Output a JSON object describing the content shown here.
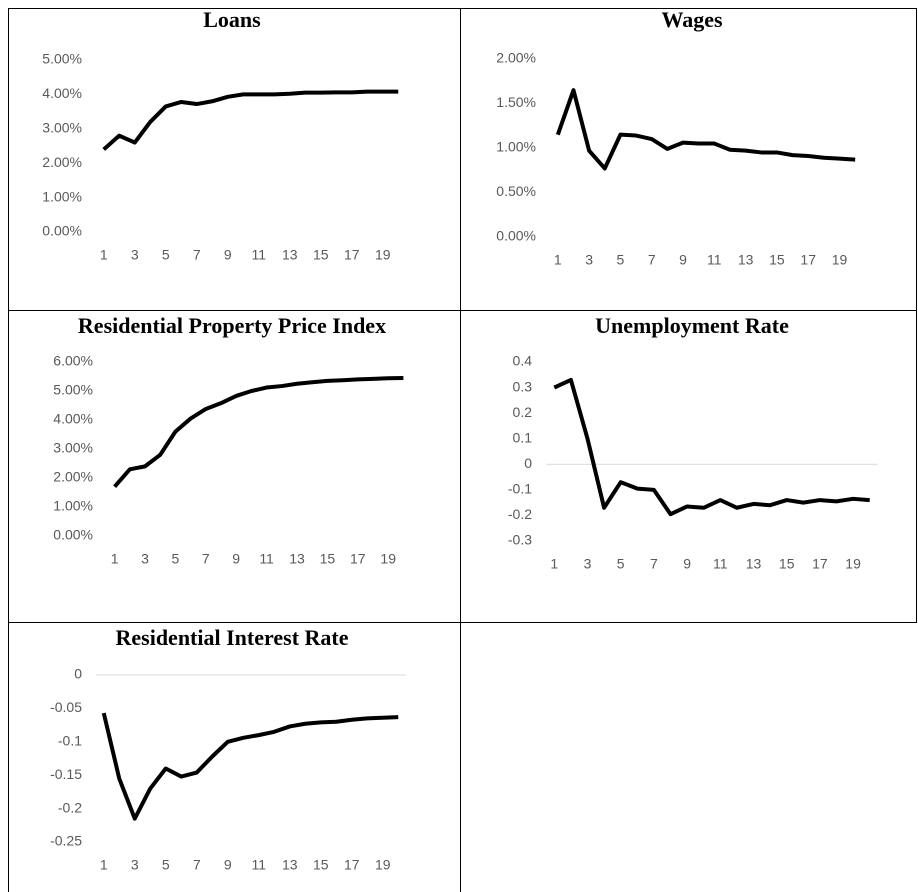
{
  "chart_data": [
    {
      "type": "line",
      "title": "Loans",
      "categories": [
        1,
        null,
        3,
        null,
        5,
        null,
        7,
        null,
        9,
        null,
        11,
        null,
        13,
        null,
        15,
        null,
        17,
        null,
        19,
        null
      ],
      "values": [
        2.4,
        2.8,
        2.6,
        3.2,
        3.65,
        3.78,
        3.72,
        3.8,
        3.93,
        4.0,
        4.0,
        4.0,
        4.02,
        4.05,
        4.05,
        4.06,
        4.06,
        4.08,
        4.08,
        4.08
      ],
      "color": "#000000",
      "ylim": [
        0,
        5
      ],
      "yticks": [
        {
          "value": 0,
          "label": "0.00%"
        },
        {
          "value": 1,
          "label": "1.00%"
        },
        {
          "value": 2,
          "label": "2.00%"
        },
        {
          "value": 3,
          "label": "3.00%"
        },
        {
          "value": 4,
          "label": "4.00%"
        },
        {
          "value": 5,
          "label": "5.00%"
        }
      ],
      "axis_line": false
    },
    {
      "type": "line",
      "title": "Wages",
      "categories": [
        1,
        null,
        3,
        null,
        5,
        null,
        7,
        null,
        9,
        null,
        11,
        null,
        13,
        null,
        15,
        null,
        17,
        null,
        19,
        null
      ],
      "values": [
        1.15,
        1.65,
        0.97,
        0.77,
        1.15,
        1.14,
        1.1,
        0.99,
        1.06,
        1.05,
        1.05,
        0.98,
        0.97,
        0.95,
        0.95,
        0.92,
        0.91,
        0.89,
        0.88,
        0.87
      ],
      "color": "#000000",
      "ylim": [
        0,
        2
      ],
      "yticks": [
        {
          "value": 0,
          "label": "0.00%"
        },
        {
          "value": 0.5,
          "label": "0.50%"
        },
        {
          "value": 1,
          "label": "1.00%"
        },
        {
          "value": 1.5,
          "label": "1.50%"
        },
        {
          "value": 2,
          "label": "2.00%"
        }
      ],
      "axis_line": false
    },
    {
      "type": "line",
      "title": "Residential Property Price   Index",
      "categories": [
        1,
        null,
        3,
        null,
        5,
        null,
        7,
        null,
        9,
        null,
        11,
        null,
        13,
        null,
        15,
        null,
        17,
        null,
        19,
        null
      ],
      "values": [
        1.7,
        2.3,
        2.4,
        2.8,
        3.6,
        4.05,
        4.38,
        4.58,
        4.83,
        5.0,
        5.12,
        5.17,
        5.25,
        5.3,
        5.35,
        5.37,
        5.4,
        5.42,
        5.44,
        5.45
      ],
      "color": "#000000",
      "ylim": [
        0,
        6
      ],
      "yticks": [
        {
          "value": 0,
          "label": "0.00%"
        },
        {
          "value": 1,
          "label": "1.00%"
        },
        {
          "value": 2,
          "label": "2.00%"
        },
        {
          "value": 3,
          "label": "3.00%"
        },
        {
          "value": 4,
          "label": "4.00%"
        },
        {
          "value": 5,
          "label": "5.00%"
        },
        {
          "value": 6,
          "label": "6.00%"
        }
      ],
      "axis_line": false
    },
    {
      "type": "line",
      "title": "Unemployment Rate",
      "categories": [
        1,
        null,
        3,
        null,
        5,
        null,
        7,
        null,
        9,
        null,
        11,
        null,
        13,
        null,
        15,
        null,
        17,
        null,
        19,
        null
      ],
      "values": [
        0.3,
        0.33,
        0.1,
        -0.17,
        -0.07,
        -0.095,
        -0.1,
        -0.195,
        -0.165,
        -0.17,
        -0.14,
        -0.17,
        -0.155,
        -0.16,
        -0.14,
        -0.15,
        -0.14,
        -0.145,
        -0.135,
        -0.14
      ],
      "color": "#000000",
      "ylim": [
        -0.3,
        0.4
      ],
      "yticks": [
        -0.3,
        -0.2,
        -0.1,
        0,
        0.1,
        0.2,
        0.3,
        0.4
      ],
      "axis_line": true
    },
    {
      "type": "line",
      "title": "Residential Interest Rate",
      "categories": [
        1,
        null,
        3,
        null,
        5,
        null,
        7,
        null,
        9,
        null,
        11,
        null,
        13,
        null,
        15,
        null,
        17,
        null,
        19,
        null
      ],
      "values": [
        -0.057,
        -0.155,
        -0.215,
        -0.17,
        -0.14,
        -0.152,
        -0.146,
        -0.122,
        -0.1,
        -0.094,
        -0.09,
        -0.085,
        -0.077,
        -0.073,
        -0.071,
        -0.07,
        -0.067,
        -0.065,
        -0.064,
        -0.063
      ],
      "color": "#000000",
      "ylim": [
        -0.25,
        0
      ],
      "yticks": [
        -0.25,
        -0.2,
        -0.15,
        -0.1,
        -0.05,
        0
      ],
      "axis_line": true
    }
  ]
}
